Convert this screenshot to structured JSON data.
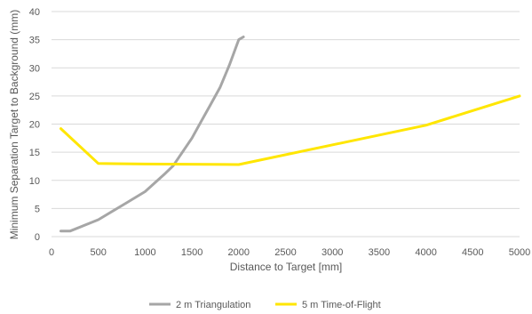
{
  "chart_data": {
    "type": "line",
    "title": "",
    "xlabel": "Distance to Target [mm]",
    "ylabel": "Minimum Separation Target to Background (mm)",
    "xlim": [
      0,
      5000
    ],
    "ylim": [
      0,
      40
    ],
    "x_ticks": [
      0,
      500,
      1000,
      1500,
      2000,
      2500,
      3000,
      3500,
      4000,
      4500,
      5000
    ],
    "y_ticks": [
      0,
      5,
      10,
      15,
      20,
      25,
      30,
      35,
      40
    ],
    "grid": "horizontal",
    "legend": "bottom",
    "series": [
      {
        "name": "2 m Triangulation",
        "color": "#a6a6a6",
        "points": [
          [
            100,
            1
          ],
          [
            200,
            1
          ],
          [
            500,
            3
          ],
          [
            800,
            6
          ],
          [
            1000,
            8
          ],
          [
            1200,
            11
          ],
          [
            1300,
            12.6
          ],
          [
            1500,
            17.5
          ],
          [
            1600,
            20.5
          ],
          [
            1700,
            23.5
          ],
          [
            1800,
            26.5
          ],
          [
            1900,
            30.5
          ],
          [
            2000,
            35
          ],
          [
            2050,
            35.5
          ]
        ]
      },
      {
        "name": "5 m Time-of-Flight",
        "color": "#ffe600",
        "points": [
          [
            100,
            19.2
          ],
          [
            500,
            13
          ],
          [
            1000,
            12.9
          ],
          [
            2000,
            12.8
          ],
          [
            4000,
            19.8
          ],
          [
            5000,
            25
          ]
        ]
      }
    ]
  }
}
